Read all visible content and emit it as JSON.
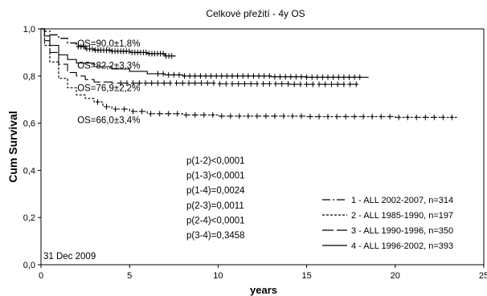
{
  "chart_data": {
    "type": "line",
    "subtype": "kaplan-meier",
    "title": "Celkové přežití - 4y OS",
    "xlabel": "years",
    "ylabel": "Cum Survival",
    "xlim": [
      0,
      25
    ],
    "ylim": [
      0.0,
      1.0
    ],
    "x_ticks": [
      "0",
      "5",
      "10",
      "15",
      "20",
      "25"
    ],
    "y_ticks": [
      "0,0",
      "0,2",
      "0,4",
      "0,6",
      "0,8",
      "1,0"
    ],
    "grid": false,
    "legend_position": "bottom-right",
    "date_note": "31 Dec 2009",
    "series": [
      {
        "name": "1 - ALL 2002-2007, n=314",
        "line_style": "long-dash-dot",
        "annotation": "OS=90,0±1,8%",
        "points": [
          [
            0,
            1.0
          ],
          [
            0.2,
            0.99
          ],
          [
            0.5,
            0.975
          ],
          [
            1,
            0.96
          ],
          [
            1.5,
            0.94
          ],
          [
            2,
            0.925
          ],
          [
            2.5,
            0.915
          ],
          [
            3,
            0.91
          ],
          [
            4,
            0.905
          ],
          [
            5,
            0.9
          ],
          [
            6,
            0.895
          ],
          [
            7,
            0.885
          ],
          [
            7.6,
            0.885
          ]
        ]
      },
      {
        "name": "2 - ALL 1985-1990, n=197",
        "line_style": "short-dash",
        "annotation": "OS=66,0±3,4%",
        "points": [
          [
            0,
            1.0
          ],
          [
            0.2,
            0.93
          ],
          [
            0.5,
            0.86
          ],
          [
            1,
            0.79
          ],
          [
            1.5,
            0.75
          ],
          [
            2,
            0.72
          ],
          [
            2.5,
            0.705
          ],
          [
            3,
            0.69
          ],
          [
            3.5,
            0.67
          ],
          [
            4,
            0.66
          ],
          [
            5,
            0.65
          ],
          [
            6,
            0.64
          ],
          [
            8,
            0.635
          ],
          [
            10,
            0.63
          ],
          [
            15,
            0.628
          ],
          [
            20,
            0.625
          ],
          [
            23.5,
            0.625
          ]
        ]
      },
      {
        "name": "3 - ALL 1990-1996, n=350",
        "line_style": "long-dash",
        "annotation": "OS=76,9±2,2%",
        "points": [
          [
            0,
            1.0
          ],
          [
            0.2,
            0.95
          ],
          [
            0.5,
            0.9
          ],
          [
            1,
            0.85
          ],
          [
            1.5,
            0.815
          ],
          [
            2,
            0.8
          ],
          [
            2.5,
            0.785
          ],
          [
            3,
            0.775
          ],
          [
            4,
            0.77
          ],
          [
            6,
            0.77
          ],
          [
            8,
            0.77
          ],
          [
            10,
            0.767
          ],
          [
            14,
            0.765
          ],
          [
            18,
            0.765
          ]
        ]
      },
      {
        "name": "4 - ALL 1996-2002, n=393",
        "line_style": "solid",
        "annotation": "OS=82,2±3,3%",
        "points": [
          [
            0,
            1.0
          ],
          [
            0.2,
            0.97
          ],
          [
            0.5,
            0.93
          ],
          [
            1,
            0.89
          ],
          [
            1.5,
            0.87
          ],
          [
            2,
            0.855
          ],
          [
            3,
            0.84
          ],
          [
            4,
            0.83
          ],
          [
            5,
            0.82
          ],
          [
            6,
            0.81
          ],
          [
            7,
            0.805
          ],
          [
            8,
            0.8
          ],
          [
            10,
            0.8
          ],
          [
            13,
            0.797
          ],
          [
            15,
            0.795
          ],
          [
            18.5,
            0.795
          ]
        ]
      }
    ],
    "p_values": [
      "p(1-2)<0,0001",
      "p(1-3)<0,0001",
      "p(1-4)=0,0024",
      "p(2-3)=0,0011",
      "p(2-4)<0,0001",
      "p(3-4)=0,3458"
    ]
  }
}
